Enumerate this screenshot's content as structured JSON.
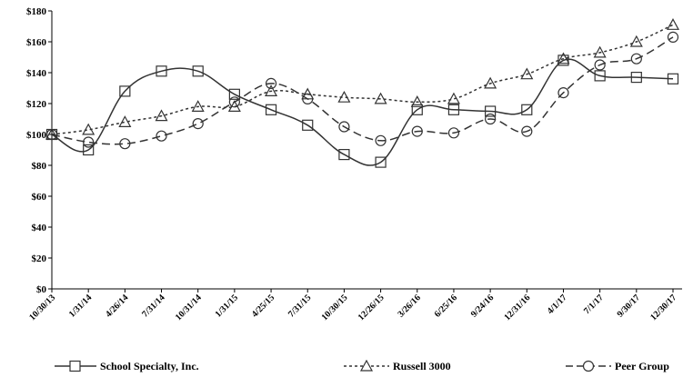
{
  "chart_data": {
    "type": "line",
    "categories": [
      "10/30/13",
      "1/31/14",
      "4/26/14",
      "7/31/14",
      "10/31/14",
      "1/31/15",
      "4/25/15",
      "7/31/15",
      "10/30/15",
      "12/26/15",
      "3/26/16",
      "6/25/16",
      "9/24/16",
      "12/31/16",
      "4/1/17",
      "7/1/17",
      "9/30/17",
      "12/30/17"
    ],
    "yticks": [
      "$0",
      "$20",
      "$40",
      "$60",
      "$80",
      "$100",
      "$120",
      "$140",
      "$160",
      "$180"
    ],
    "ylim": [
      0,
      180
    ],
    "grid": false,
    "legend_position": "bottom",
    "series": [
      {
        "name": "School Specialty, Inc.",
        "marker": "square",
        "dash": "solid",
        "color": "#333333",
        "values": [
          100,
          90,
          128,
          141,
          141,
          126,
          116,
          106,
          87,
          82,
          116,
          116,
          115,
          116,
          148,
          138,
          137,
          136
        ]
      },
      {
        "name": "Russell 3000",
        "marker": "triangle",
        "dash": "short-dash",
        "color": "#333333",
        "values": [
          100,
          103,
          108,
          112,
          118,
          118,
          128,
          126,
          124,
          123,
          121,
          123,
          133,
          139,
          149,
          153,
          160,
          171
        ]
      },
      {
        "name": "Peer Group",
        "marker": "circle",
        "dash": "long-dash",
        "color": "#333333",
        "values": [
          100,
          95,
          94,
          99,
          107,
          121,
          133,
          123,
          105,
          96,
          102,
          101,
          110,
          102,
          127,
          145,
          149,
          163
        ]
      }
    ]
  }
}
